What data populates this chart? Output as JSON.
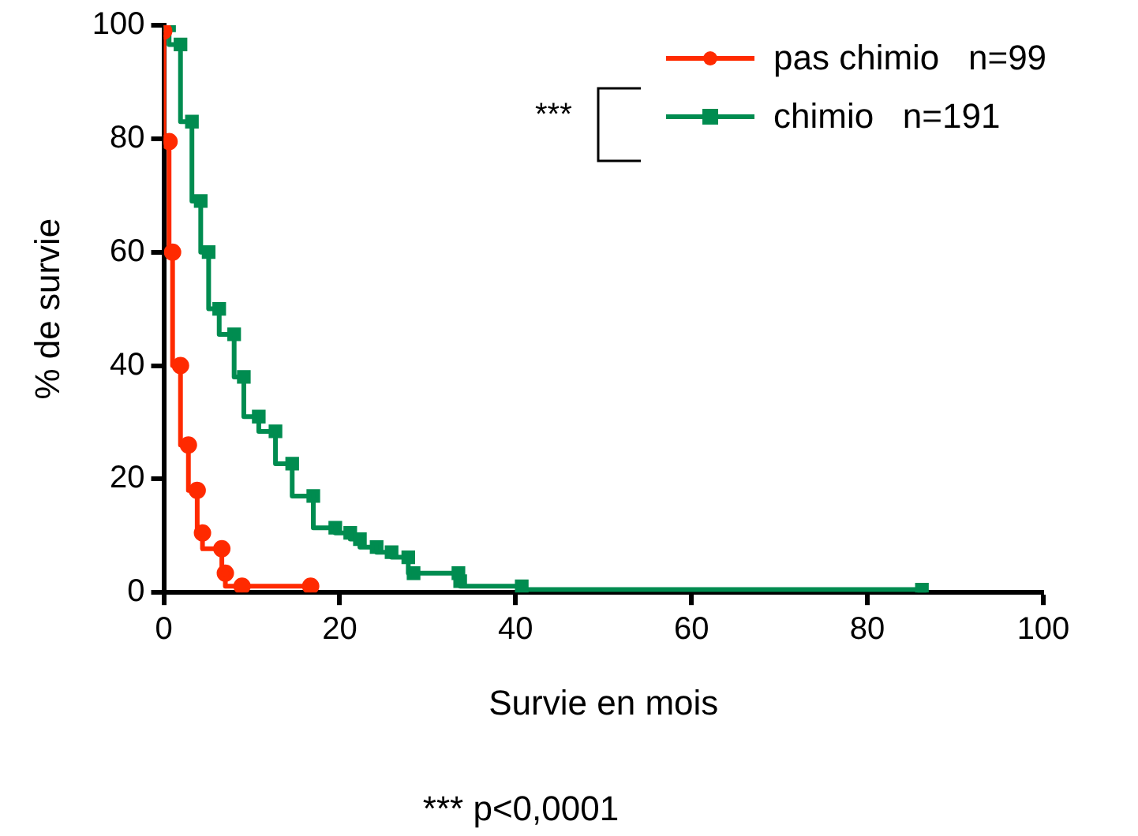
{
  "chart_data": {
    "type": "step",
    "xlabel": "Survie en mois",
    "ylabel": "% de survie",
    "xlim": [
      0,
      100
    ],
    "xticks": [
      0,
      20,
      40,
      60,
      80,
      100
    ],
    "ylim": [
      0,
      100
    ],
    "yticks": [
      0,
      20,
      40,
      60,
      80,
      100
    ],
    "grid": false,
    "legend": "top right",
    "line_style": "solid",
    "series": [
      {
        "name": "pas chimio   n=99",
        "color": "#ff2a00",
        "marker": "circle",
        "x": [
          0,
          0.6,
          1,
          1.9,
          2.8,
          3.8,
          4.4,
          6.6,
          7,
          8.9,
          16.7
        ],
        "values": [
          99,
          79.5,
          60,
          40,
          26,
          18,
          10.5,
          7.7,
          3.4,
          1.1,
          1.1
        ]
      },
      {
        "name": "chimio   n=191",
        "color": "#008c50",
        "marker": "square",
        "x": [
          0,
          0.6,
          1.9,
          3.2,
          4.2,
          5.1,
          6.3,
          8,
          9.1,
          10.8,
          12.7,
          14.6,
          17,
          19.5,
          21.2,
          22.3,
          24.2,
          25.9,
          27.8,
          28.4,
          33.5,
          33.7,
          40.7,
          86.2
        ],
        "values": [
          100,
          100,
          96.6,
          83,
          69,
          60,
          50,
          45.5,
          38,
          31,
          28.4,
          22.7,
          17,
          11.4,
          10.5,
          9.4,
          8,
          7.1,
          6.2,
          3.4,
          3.4,
          2,
          1.1,
          0.5
        ]
      }
    ],
    "annotations": [
      "***",
      "*** p<0,0001"
    ]
  }
}
